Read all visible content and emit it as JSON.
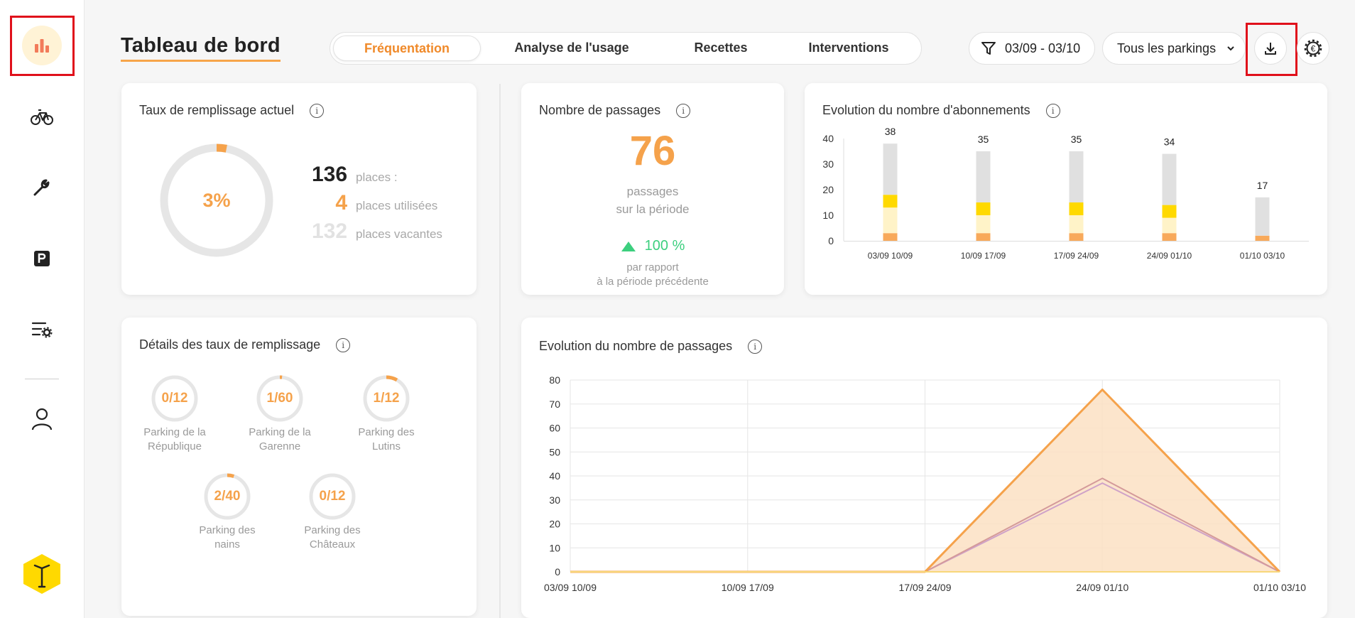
{
  "header": {
    "title": "Tableau de bord",
    "tabs": [
      "Fréquentation",
      "Analyse de l'usage",
      "Recettes",
      "Interventions"
    ],
    "date_filter": "03/09 - 03/10",
    "parking_select": "Tous les parkings"
  },
  "sidebar": {
    "items": [
      "chart-icon",
      "bike-icon",
      "wrench-icon",
      "parking-icon",
      "settings-list-icon",
      "user-icon"
    ]
  },
  "fill_rate": {
    "title": "Taux de remplissage actuel",
    "percent_label": "3%",
    "percent_value": 0.03,
    "total": "136",
    "total_label": "places :",
    "used": "4",
    "used_label": "places utilisées",
    "vacant": "132",
    "vacant_label": "places vacantes"
  },
  "passages": {
    "title": "Nombre de passages",
    "value": "76",
    "label_line1": "passages",
    "label_line2": "sur la période",
    "change": "100 %",
    "compare_line1": "par rapport",
    "compare_line2": "à la période précédente"
  },
  "details": {
    "title": "Détails des taux de remplissage",
    "parkings": [
      {
        "value": "0/12",
        "fill": 0.0,
        "line1": "Parking de la",
        "line2": "République"
      },
      {
        "value": "1/60",
        "fill": 0.0167,
        "line1": "Parking de la",
        "line2": "Garenne"
      },
      {
        "value": "1/12",
        "fill": 0.083,
        "line1": "Parking des Lutins",
        "line2": ""
      },
      {
        "value": "2/40",
        "fill": 0.05,
        "line1": "Parking des nains",
        "line2": ""
      },
      {
        "value": "0/12",
        "fill": 0.0,
        "line1": "Parking des",
        "line2": "Châteaux"
      }
    ]
  },
  "colors": {
    "accent": "#f5a24b",
    "accent_dark": "#f08a2a",
    "positive": "#3ccf7e",
    "highlight": "#e0101b",
    "bar_gray": "#e0e0e0",
    "bar_yellow": "#ffd900",
    "bar_cream": "#fff3c8",
    "bar_orange": "#f8a95a"
  },
  "chart_data": [
    {
      "type": "bar",
      "title": "Evolution du nombre d'abonnements",
      "categories": [
        "03/09 10/09",
        "10/09 17/09",
        "17/09 24/09",
        "24/09 01/10",
        "01/10 03/10"
      ],
      "totals": [
        38,
        35,
        35,
        34,
        17
      ],
      "ylim": [
        0,
        40
      ],
      "yticks": [
        "40",
        "30",
        "20",
        "10",
        "0"
      ],
      "series": [
        {
          "values": [
            3,
            3,
            3,
            3,
            2
          ]
        },
        {
          "values": [
            10,
            7,
            7,
            6,
            0
          ]
        },
        {
          "values": [
            5,
            5,
            5,
            5,
            0
          ]
        },
        {
          "values": [
            20,
            20,
            20,
            20,
            15
          ]
        }
      ],
      "grid": false
    },
    {
      "type": "area",
      "title": "Evolution du nombre de passages",
      "categories": [
        "03/09 10/09",
        "10/09 17/09",
        "17/09 24/09",
        "24/09 01/10",
        "01/10 03/10"
      ],
      "ylim": [
        0,
        80
      ],
      "yticks": [
        "80",
        "70",
        "60",
        "50",
        "40",
        "30",
        "20",
        "10",
        "0"
      ],
      "series": [
        {
          "values": [
            0,
            0,
            0,
            76,
            0
          ]
        },
        {
          "values": [
            0,
            0,
            0,
            39,
            0
          ]
        },
        {
          "values": [
            0,
            0,
            0,
            37,
            0
          ]
        }
      ],
      "grid": true
    }
  ]
}
